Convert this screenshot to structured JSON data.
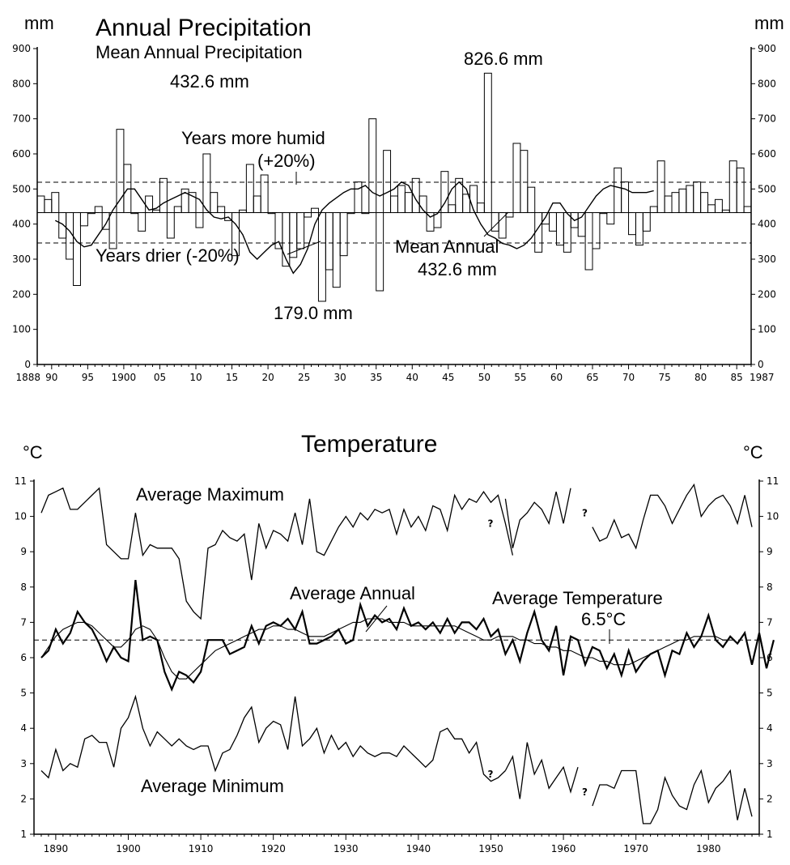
{
  "chart_data": [
    {
      "type": "bar",
      "title": "Annual Precipitation",
      "subtitle": "Mean Annual Precipitation",
      "mean_text": "432.6 mm",
      "ylabel_left": "mm",
      "ylabel_right": "mm",
      "ylim": [
        0,
        900
      ],
      "yticks": [
        0,
        100,
        200,
        300,
        400,
        500,
        600,
        700,
        800,
        900
      ],
      "xlim": [
        1888,
        1987
      ],
      "xtick_labels": [
        {
          "year": 1888,
          "label": "1888"
        },
        {
          "year": 1890,
          "label": "90"
        },
        {
          "year": 1895,
          "label": "95"
        },
        {
          "year": 1900,
          "label": "1900"
        },
        {
          "year": 1905,
          "label": "05"
        },
        {
          "year": 1910,
          "label": "10"
        },
        {
          "year": 1915,
          "label": "15"
        },
        {
          "year": 1920,
          "label": "20"
        },
        {
          "year": 1925,
          "label": "25"
        },
        {
          "year": 1930,
          "label": "30"
        },
        {
          "year": 1935,
          "label": "35"
        },
        {
          "year": 1940,
          "label": "40"
        },
        {
          "year": 1945,
          "label": "45"
        },
        {
          "year": 1950,
          "label": "50"
        },
        {
          "year": 1955,
          "label": "55"
        },
        {
          "year": 1960,
          "label": "60"
        },
        {
          "year": 1965,
          "label": "65"
        },
        {
          "year": 1970,
          "label": "70"
        },
        {
          "year": 1975,
          "label": "75"
        },
        {
          "year": 1980,
          "label": "80"
        },
        {
          "year": 1985,
          "label": "85"
        },
        {
          "year": 1987,
          "label": "1987"
        }
      ],
      "years": [
        1888,
        1889,
        1890,
        1891,
        1892,
        1893,
        1894,
        1895,
        1896,
        1897,
        1898,
        1899,
        1900,
        1901,
        1902,
        1903,
        1904,
        1905,
        1906,
        1907,
        1908,
        1909,
        1910,
        1911,
        1912,
        1913,
        1914,
        1915,
        1916,
        1917,
        1918,
        1919,
        1920,
        1921,
        1922,
        1923,
        1924,
        1925,
        1926,
        1927,
        1928,
        1929,
        1930,
        1931,
        1932,
        1933,
        1934,
        1935,
        1936,
        1937,
        1938,
        1939,
        1940,
        1941,
        1942,
        1943,
        1944,
        1945,
        1946,
        1947,
        1948,
        1949,
        1950,
        1951,
        1952,
        1953,
        1954,
        1955,
        1956,
        1957,
        1958,
        1959,
        1960,
        1961,
        1962,
        1963,
        1964,
        1965,
        1966,
        1967,
        1968,
        1969,
        1970,
        1971,
        1972,
        1973,
        1974,
        1975,
        1976,
        1977,
        1978,
        1979,
        1980,
        1981,
        1982,
        1983,
        1984,
        1985,
        1986
      ],
      "values": [
        480,
        470,
        490,
        360,
        300,
        225,
        395,
        430,
        450,
        385,
        330,
        670,
        570,
        430,
        380,
        480,
        440,
        530,
        360,
        450,
        500,
        490,
        390,
        600,
        490,
        450,
        410,
        310,
        440,
        570,
        480,
        540,
        430,
        330,
        280,
        305,
        330,
        420,
        445,
        180,
        270,
        220,
        310,
        430,
        520,
        430,
        700,
        210,
        610,
        480,
        510,
        490,
        530,
        480,
        380,
        390,
        550,
        455,
        530,
        485,
        510,
        460,
        830,
        380,
        360,
        420,
        630,
        610,
        505,
        320,
        400,
        380,
        340,
        320,
        390,
        365,
        270,
        330,
        430,
        400,
        560,
        520,
        370,
        340,
        380,
        450,
        580,
        480,
        490,
        500,
        510,
        520,
        490,
        455,
        470,
        440,
        580,
        560,
        450
      ],
      "moving_average": [
        410,
        400,
        380,
        350,
        335,
        340,
        370,
        400,
        440,
        470,
        500,
        500,
        470,
        440,
        445,
        460,
        470,
        480,
        490,
        480,
        470,
        440,
        420,
        415,
        420,
        400,
        370,
        320,
        300,
        320,
        340,
        350,
        300,
        260,
        285,
        330,
        400,
        440,
        460,
        475,
        490,
        500,
        500,
        510,
        490,
        480,
        490,
        500,
        520,
        510,
        470,
        440,
        420,
        430,
        460,
        500,
        520,
        500,
        440,
        400,
        370,
        360,
        345,
        340,
        330,
        340,
        360,
        390,
        420,
        460,
        460,
        430,
        410,
        420,
        450,
        480,
        500,
        510,
        505,
        500,
        490,
        490,
        490,
        495
      ],
      "moving_average_start": 1890,
      "reference_lines": [
        {
          "value": 432.6,
          "name": "Mean Annual"
        },
        {
          "value": 519.1,
          "name": "Years more humid (+20%)"
        },
        {
          "value": 346.1,
          "name": "Years drier (-20%)"
        }
      ],
      "annotations": {
        "humid_1": "Years more humid",
        "humid_2": "(+20%)",
        "drier": "Years drier (-20%)",
        "mean_1": "Mean Annual",
        "mean_2": "432.6 mm",
        "max": "826.6 mm",
        "min": "179.0 mm"
      }
    },
    {
      "type": "line",
      "title": "Temperature",
      "ylabel_left": "°C",
      "ylabel_right": "°C",
      "ylim": [
        1,
        11
      ],
      "yticks": [
        1,
        2,
        3,
        4,
        5,
        6,
        7,
        8,
        9,
        10,
        11
      ],
      "xlim": [
        1887,
        1987
      ],
      "xticks": [
        1890,
        1900,
        1910,
        1920,
        1930,
        1940,
        1950,
        1960,
        1970,
        1980
      ],
      "x_start": 1888,
      "series": [
        {
          "name": "Average Maximum",
          "segments": [
            {
              "start": 1888,
              "values": [
                10.1,
                10.6,
                10.7,
                10.8,
                10.2,
                10.2,
                10.4,
                10.6,
                10.8,
                9.2,
                9.0,
                8.8,
                8.8,
                10.1,
                8.9,
                9.2,
                9.1,
                9.1,
                9.1,
                8.8,
                7.6,
                7.3,
                7.1,
                9.1,
                9.2,
                9.6,
                9.4,
                9.3,
                9.5,
                8.2,
                9.8,
                9.1,
                9.6,
                9.5,
                9.3,
                10.1,
                9.2,
                10.5,
                9.0,
                8.9,
                9.3,
                9.7,
                10.0,
                9.7,
                10.1,
                9.9,
                10.2,
                10.1,
                10.2,
                9.5,
                10.2,
                9.7,
                10.0,
                9.6,
                10.3,
                10.2,
                9.6,
                10.6,
                10.2,
                10.5,
                10.4,
                10.7,
                10.4,
                10.6,
                9.8,
                8.9
              ]
            },
            {
              "start": 1952,
              "values": [
                10.5,
                9.1,
                9.9,
                10.1,
                10.4,
                10.2,
                9.8,
                10.7,
                9.8,
                10.8
              ]
            },
            {
              "start": 1964,
              "values": [
                9.7,
                9.3,
                9.4,
                9.9,
                9.4,
                9.5,
                9.1,
                9.9,
                10.6,
                10.6,
                10.3,
                9.8,
                10.2,
                10.6,
                10.9,
                10.0,
                10.3,
                10.5,
                10.6,
                10.3,
                9.8,
                10.6,
                9.7
              ]
            }
          ]
        },
        {
          "name": "Average Annual",
          "segments": [
            {
              "start": 1888,
              "values": [
                6.0,
                6.2,
                6.8,
                6.4,
                6.7,
                7.3,
                7.0,
                6.8,
                6.4,
                5.9,
                6.3,
                6.0,
                5.9,
                8.2,
                6.5,
                6.6,
                6.5,
                5.6,
                5.1,
                5.6,
                5.5,
                5.3,
                5.6,
                6.5,
                6.5,
                6.5,
                6.1,
                6.2,
                6.3,
                6.9,
                6.4,
                6.9,
                7.0,
                6.9,
                7.1,
                6.8,
                7.3,
                6.4,
                6.4,
                6.5,
                6.6,
                6.8,
                6.4,
                6.5,
                7.5,
                6.9,
                7.2,
                7.0,
                7.1,
                6.8,
                7.4,
                6.9,
                7.0,
                6.8,
                7.0,
                6.7,
                7.1,
                6.7,
                7.0,
                7.0,
                6.8,
                7.1,
                6.6,
                6.8,
                6.1,
                6.5,
                5.9,
                6.7,
                7.3,
                6.5,
                6.2,
                6.9,
                5.5,
                6.6,
                6.5,
                5.8,
                6.3,
                6.2,
                5.7,
                6.1,
                5.5,
                6.2,
                5.6,
                5.9,
                6.1,
                6.2,
                5.5,
                6.2,
                6.1,
                6.7,
                6.3,
                6.6,
                7.2,
                6.5,
                6.3,
                6.6,
                6.4,
                6.7,
                5.8,
                6.7,
                5.7,
                6.5
              ]
            }
          ]
        },
        {
          "name": "Average Annual trend",
          "segments": [
            {
              "start": 1888,
              "values": [
                6.0,
                6.3,
                6.6,
                6.8,
                6.9,
                7.0,
                7.0,
                6.9,
                6.7,
                6.5,
                6.3,
                6.3,
                6.5,
                6.8,
                6.9,
                6.8,
                6.5,
                6.0,
                5.6,
                5.4,
                5.4,
                5.6,
                5.8,
                6.0,
                6.2,
                6.3,
                6.4,
                6.5,
                6.6,
                6.7,
                6.8,
                6.8,
                6.9,
                6.9,
                6.8,
                6.8,
                6.7,
                6.6,
                6.6,
                6.6,
                6.7,
                6.8,
                6.9,
                7.0,
                7.0,
                7.1,
                7.1,
                7.1,
                7.0,
                7.0,
                7.0,
                6.9,
                6.9,
                6.9,
                6.9,
                6.9,
                6.9,
                6.9,
                6.8,
                6.7,
                6.6,
                6.5,
                6.5,
                6.6,
                6.6,
                6.6,
                6.5,
                6.5,
                6.4,
                6.4,
                6.3,
                6.3,
                6.2,
                6.2,
                6.1,
                6.0,
                6.0,
                5.9,
                5.9,
                5.8,
                5.8,
                5.8,
                5.9,
                6.0,
                6.1,
                6.2,
                6.3,
                6.4,
                6.5,
                6.5,
                6.6,
                6.6,
                6.6,
                6.6,
                6.5,
                6.5
              ]
            }
          ]
        },
        {
          "name": "Average Minimum",
          "segments": [
            {
              "start": 1888,
              "values": [
                2.8,
                2.6,
                3.4,
                2.8,
                3.0,
                2.9,
                3.7,
                3.8,
                3.6,
                3.6,
                2.9,
                4.0,
                4.3,
                4.9,
                4.0,
                3.5,
                3.9,
                3.7,
                3.5,
                3.7,
                3.5,
                3.4,
                3.5,
                3.5,
                2.8,
                3.3,
                3.4,
                3.8,
                4.3,
                4.6,
                3.6,
                4.0,
                4.2,
                4.1,
                3.4,
                4.9,
                3.5,
                3.7,
                4.0,
                3.3,
                3.8,
                3.4,
                3.6,
                3.2,
                3.5,
                3.3,
                3.2,
                3.3,
                3.3,
                3.2,
                3.5,
                3.3,
                3.1,
                2.9,
                3.1,
                3.9,
                4.0,
                3.7,
                3.7,
                3.3,
                3.6,
                2.7,
                2.5,
                2.6,
                2.8
              ]
            },
            {
              "start": 1952,
              "values": [
                2.8,
                3.2,
                2.0,
                3.6,
                2.7,
                3.1,
                2.3,
                2.6,
                2.9,
                2.2,
                2.9
              ]
            },
            {
              "start": 1964,
              "values": [
                1.8,
                2.4,
                2.4,
                2.3,
                2.8,
                2.8,
                2.8,
                1.3,
                1.3,
                1.7,
                2.6,
                2.1,
                1.8,
                1.7,
                2.4,
                2.8,
                1.9,
                2.3,
                2.5,
                2.8,
                1.4,
                2.3,
                1.5
              ]
            }
          ]
        }
      ],
      "missing_data_marker": "?",
      "missing_years": [
        1949,
        1962
      ],
      "reference_line": {
        "value": 6.5,
        "label_1": "Average Temperature",
        "label_2": "6.5°C"
      },
      "annotations": {
        "max": "Average Maximum",
        "annual": "Average Annual",
        "min": "Average Minimum"
      }
    }
  ]
}
